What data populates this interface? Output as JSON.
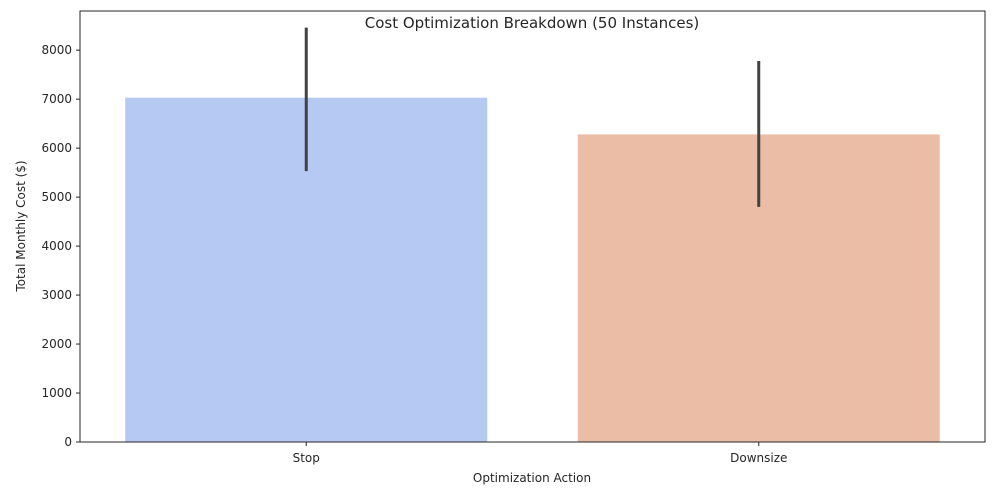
{
  "chart_data": {
    "type": "bar",
    "title": "Cost Optimization Breakdown (50 Instances)",
    "xlabel": "Optimization Action",
    "ylabel": "Total Monthly Cost ($)",
    "categories": [
      "Stop",
      "Downsize"
    ],
    "values": [
      7030,
      6280
    ],
    "error_bars": [
      {
        "low": 5530,
        "high": 8460
      },
      {
        "low": 4800,
        "high": 7780
      }
    ],
    "colors": [
      "#b6c9f3",
      "#ebbca6"
    ],
    "error_color": "#424242",
    "ylim": [
      0,
      8800
    ],
    "yticks": [
      0,
      1000,
      2000,
      3000,
      4000,
      5000,
      6000,
      7000,
      8000
    ],
    "grid": false,
    "legend": "none"
  }
}
